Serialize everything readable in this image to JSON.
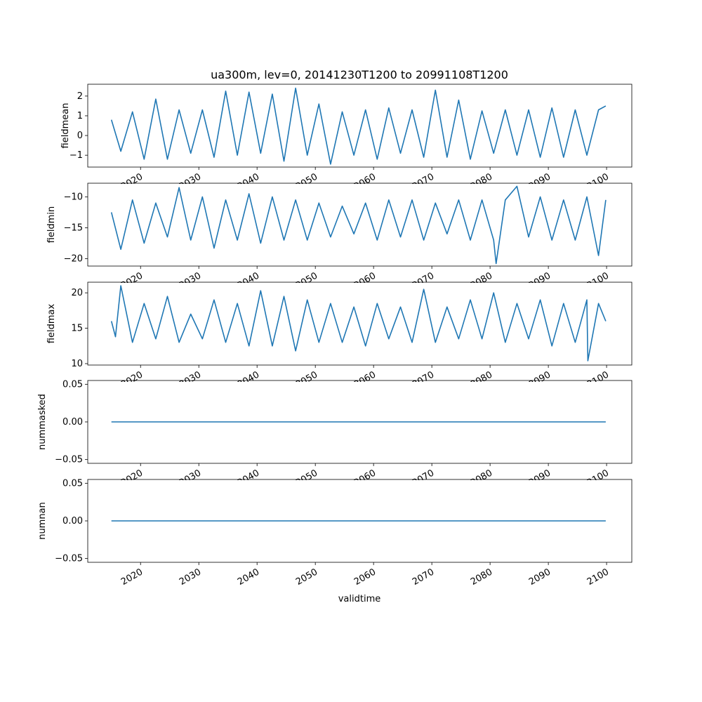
{
  "title": "ua300m, lev=0, 20141230T1200 to 20991108T1200",
  "xlabel": "validtime",
  "line_color": "#1f77b4",
  "x_ticks": [
    "2020",
    "2030",
    "2040",
    "2050",
    "2060",
    "2070",
    "2080",
    "2090",
    "2100"
  ],
  "chart_data": [
    {
      "type": "line",
      "ylabel": "fieldmean",
      "xlim": [
        "2010-12-08",
        "2104-05-01"
      ],
      "ylim": [
        -1.6,
        2.6
      ],
      "y_ticks": [
        {
          "value": -1,
          "label": "−1"
        },
        {
          "value": 0,
          "label": "0"
        },
        {
          "value": 1,
          "label": "1"
        },
        {
          "value": 2,
          "label": "2"
        }
      ],
      "series": [
        {
          "x": [
            "2014-12-30",
            "2016-08-13",
            "2018-08-13",
            "2020-08-13",
            "2022-08-13",
            "2024-08-13",
            "2026-08-13",
            "2028-08-13",
            "2030-08-13",
            "2032-08-13",
            "2034-08-13",
            "2036-08-13",
            "2038-08-13",
            "2040-08-13",
            "2042-08-13",
            "2044-08-13",
            "2046-08-13",
            "2048-08-13",
            "2050-08-13",
            "2052-08-13",
            "2054-08-13",
            "2056-08-13",
            "2058-08-13",
            "2060-08-13",
            "2062-08-13",
            "2064-08-13",
            "2066-08-13",
            "2068-08-13",
            "2070-08-13",
            "2072-08-13",
            "2074-08-13",
            "2076-08-13",
            "2078-08-13",
            "2080-08-13",
            "2082-08-13",
            "2084-08-13",
            "2086-08-13",
            "2088-08-13",
            "2090-08-13",
            "2092-08-13",
            "2094-08-13",
            "2096-08-13",
            "2098-08-13",
            "2099-11-08"
          ],
          "y": [
            0.8,
            -0.8,
            1.2,
            -1.2,
            1.85,
            -1.2,
            1.3,
            -0.9,
            1.3,
            -1.1,
            2.25,
            -1.0,
            2.2,
            -0.9,
            2.1,
            -1.3,
            2.4,
            -1.0,
            1.6,
            -1.45,
            1.2,
            -1.0,
            1.3,
            -1.2,
            1.4,
            -0.9,
            1.3,
            -1.1,
            2.3,
            -1.1,
            1.8,
            -1.2,
            1.25,
            -0.9,
            1.3,
            -1.0,
            1.3,
            -1.1,
            1.4,
            -1.1,
            1.3,
            -1.0,
            1.3,
            1.5
          ]
        }
      ]
    },
    {
      "type": "line",
      "ylabel": "fieldmin",
      "xlim": [
        "2010-12-08",
        "2104-05-01"
      ],
      "ylim": [
        -21.2,
        -7.8
      ],
      "y_ticks": [
        {
          "value": -20,
          "label": "−20"
        },
        {
          "value": -15,
          "label": "−15"
        },
        {
          "value": -10,
          "label": "−10"
        }
      ],
      "series": [
        {
          "x": [
            "2014-12-30",
            "2016-08-13",
            "2018-08-13",
            "2020-08-13",
            "2022-08-13",
            "2024-08-13",
            "2026-08-13",
            "2028-08-13",
            "2030-08-13",
            "2032-08-13",
            "2034-08-13",
            "2036-08-13",
            "2038-08-13",
            "2040-08-13",
            "2042-08-13",
            "2044-08-13",
            "2046-08-13",
            "2048-08-13",
            "2050-08-13",
            "2052-08-13",
            "2054-08-13",
            "2056-08-13",
            "2058-08-13",
            "2060-08-13",
            "2062-08-13",
            "2064-08-13",
            "2066-08-13",
            "2068-08-13",
            "2070-08-13",
            "2072-08-13",
            "2074-08-13",
            "2076-08-13",
            "2078-08-13",
            "2080-08-13",
            "2081-01-13",
            "2082-08-13",
            "2084-08-13",
            "2086-08-13",
            "2088-08-13",
            "2090-08-13",
            "2092-08-13",
            "2094-08-13",
            "2096-08-13",
            "2098-08-13",
            "2099-11-08"
          ],
          "y": [
            -12.5,
            -18.5,
            -10.5,
            -17.5,
            -11.0,
            -16.5,
            -8.5,
            -17.0,
            -10.0,
            -18.3,
            -10.5,
            -17.0,
            -9.5,
            -17.5,
            -10.0,
            -17.0,
            -10.5,
            -17.0,
            -11.0,
            -16.5,
            -11.5,
            -16.0,
            -11.0,
            -17.0,
            -10.5,
            -16.5,
            -10.5,
            -17.0,
            -11.0,
            -16.0,
            -10.5,
            -17.0,
            -10.5,
            -17.0,
            -20.8,
            -10.5,
            -8.3,
            -16.5,
            -10.0,
            -17.0,
            -10.5,
            -17.0,
            -10.0,
            -19.5,
            -10.5
          ]
        }
      ]
    },
    {
      "type": "line",
      "ylabel": "fieldmax",
      "xlim": [
        "2010-12-08",
        "2104-05-01"
      ],
      "ylim": [
        9.8,
        21.5
      ],
      "y_ticks": [
        {
          "value": 10,
          "label": "10"
        },
        {
          "value": 15,
          "label": "15"
        },
        {
          "value": 20,
          "label": "20"
        }
      ],
      "series": [
        {
          "x": [
            "2014-12-30",
            "2015-09-13",
            "2016-08-13",
            "2018-08-13",
            "2020-08-13",
            "2022-08-13",
            "2024-08-13",
            "2026-08-13",
            "2028-08-13",
            "2030-08-13",
            "2032-08-13",
            "2034-08-13",
            "2036-08-13",
            "2038-08-13",
            "2040-08-13",
            "2042-08-13",
            "2044-08-13",
            "2046-08-13",
            "2048-08-13",
            "2050-08-13",
            "2052-08-13",
            "2054-08-13",
            "2056-08-13",
            "2058-08-13",
            "2060-08-13",
            "2062-08-13",
            "2064-08-13",
            "2066-08-13",
            "2068-08-13",
            "2070-08-13",
            "2072-08-13",
            "2074-08-13",
            "2076-08-13",
            "2078-08-13",
            "2080-08-13",
            "2082-08-13",
            "2084-08-13",
            "2086-08-13",
            "2088-08-13",
            "2090-08-13",
            "2092-08-13",
            "2094-08-13",
            "2096-08-13",
            "2096-10-13",
            "2098-08-13",
            "2099-11-08"
          ],
          "y": [
            16.0,
            13.8,
            21.0,
            13.0,
            18.5,
            13.5,
            19.5,
            13.0,
            17.0,
            13.5,
            19.0,
            13.0,
            18.5,
            12.5,
            20.3,
            12.5,
            19.5,
            11.8,
            19.0,
            13.0,
            18.5,
            13.0,
            18.0,
            12.5,
            18.5,
            13.5,
            18.0,
            13.0,
            20.5,
            13.0,
            18.0,
            13.5,
            19.0,
            13.5,
            20.0,
            13.0,
            18.5,
            13.5,
            19.0,
            12.5,
            18.5,
            13.0,
            19.0,
            10.4,
            18.5,
            16.0
          ]
        }
      ]
    },
    {
      "type": "line",
      "ylabel": "nummasked",
      "xlim": [
        "2010-12-08",
        "2104-05-01"
      ],
      "ylim": [
        -0.055,
        0.055
      ],
      "y_ticks": [
        {
          "value": -0.05,
          "label": "−0.05"
        },
        {
          "value": 0,
          "label": "0.00"
        },
        {
          "value": 0.05,
          "label": "0.05"
        }
      ],
      "series": [
        {
          "x": [
            "2014-12-30",
            "2099-11-08"
          ],
          "y": [
            0,
            0
          ]
        }
      ]
    },
    {
      "type": "line",
      "ylabel": "numnan",
      "xlim": [
        "2010-12-08",
        "2104-05-01"
      ],
      "ylim": [
        -0.055,
        0.055
      ],
      "y_ticks": [
        {
          "value": -0.05,
          "label": "−0.05"
        },
        {
          "value": 0,
          "label": "0.00"
        },
        {
          "value": 0.05,
          "label": "0.05"
        }
      ],
      "series": [
        {
          "x": [
            "2014-12-30",
            "2099-11-08"
          ],
          "y": [
            0,
            0
          ]
        }
      ]
    }
  ]
}
